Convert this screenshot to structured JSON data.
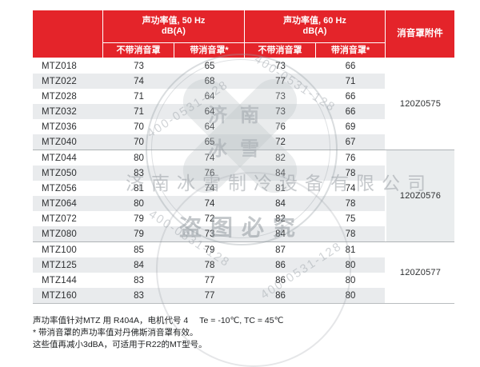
{
  "table": {
    "headers": {
      "h50": {
        "line1": "声功率值, 50 Hz",
        "line2": "dB(A)"
      },
      "h60": {
        "line1": "声功率值, 60 Hz",
        "line2": "dB(A)"
      },
      "attachment": "消音罩附件",
      "sub_without_50": "不带消音罩",
      "sub_with_50": "带消音罩*",
      "sub_without_60": "不带消音罩",
      "sub_with_60": "带消音罩*"
    },
    "groups": [
      {
        "attachment_code": "120Z0575",
        "rows": [
          {
            "model": "MTZ018",
            "v50_no": "73",
            "v50_with": "65",
            "v60_no": "73",
            "v60_with": "66"
          },
          {
            "model": "MTZ022",
            "v50_no": "74",
            "v50_with": "68",
            "v60_no": "77",
            "v60_with": "71"
          },
          {
            "model": "MTZ028",
            "v50_no": "71",
            "v50_with": "64",
            "v60_no": "73",
            "v60_with": "66"
          },
          {
            "model": "MTZ032",
            "v50_no": "71",
            "v50_with": "64",
            "v60_no": "73",
            "v60_with": "66"
          },
          {
            "model": "MTZ036",
            "v50_no": "70",
            "v50_with": "64",
            "v60_no": "76",
            "v60_with": "69"
          },
          {
            "model": "MTZ040",
            "v50_no": "70",
            "v50_with": "65",
            "v60_no": "72",
            "v60_with": "67"
          }
        ]
      },
      {
        "attachment_code": "120Z0576",
        "rows": [
          {
            "model": "MTZ044",
            "v50_no": "80",
            "v50_with": "74",
            "v60_no": "82",
            "v60_with": "76"
          },
          {
            "model": "MTZ050",
            "v50_no": "83",
            "v50_with": "76",
            "v60_no": "84",
            "v60_with": "78"
          },
          {
            "model": "MTZ056",
            "v50_no": "81",
            "v50_with": "74",
            "v60_no": "81",
            "v60_with": "74"
          },
          {
            "model": "MTZ064",
            "v50_no": "80",
            "v50_with": "74",
            "v60_no": "84",
            "v60_with": "78"
          },
          {
            "model": "MTZ072",
            "v50_no": "79",
            "v50_with": "72",
            "v60_no": "82",
            "v60_with": "75"
          },
          {
            "model": "MTZ080",
            "v50_no": "79",
            "v50_with": "73",
            "v60_no": "84",
            "v60_with": "78"
          }
        ]
      },
      {
        "attachment_code": "120Z0577",
        "rows": [
          {
            "model": "MTZ100",
            "v50_no": "85",
            "v50_with": "79",
            "v60_no": "87",
            "v60_with": "81"
          },
          {
            "model": "MTZ125",
            "v50_no": "84",
            "v50_with": "78",
            "v60_no": "86",
            "v60_with": "80"
          },
          {
            "model": "MTZ144",
            "v50_no": "83",
            "v50_with": "77",
            "v60_no": "86",
            "v60_with": "80"
          },
          {
            "model": "MTZ160",
            "v50_no": "83",
            "v50_with": "77",
            "v60_no": "86",
            "v60_with": "80"
          }
        ]
      }
    ]
  },
  "footnotes": {
    "line1_main": "声功率值针对MTZ 用 R404A，电机代号 4",
    "line1_conditions": "Te = -10℃, TC = 45℃",
    "line2": "* 带消音罩的声功率值对丹佛斯消音罩有效。",
    "line3": "这些值再减小3dBA，可适用于R22的MT型号。"
  },
  "watermark": {
    "company": "济南冰雪制冷设备有限公司",
    "slogan": "盗图必究",
    "phone": "400-0531-128",
    "logo_line1": "济南",
    "logo_line2": "冰雪"
  },
  "colors": {
    "header_red": "#e4242a",
    "stripe_gray": "#e9ebed",
    "attachment_gray": "#eaedee",
    "divider_gray": "#aeb2b5",
    "text_dark": "#2d2f31"
  }
}
